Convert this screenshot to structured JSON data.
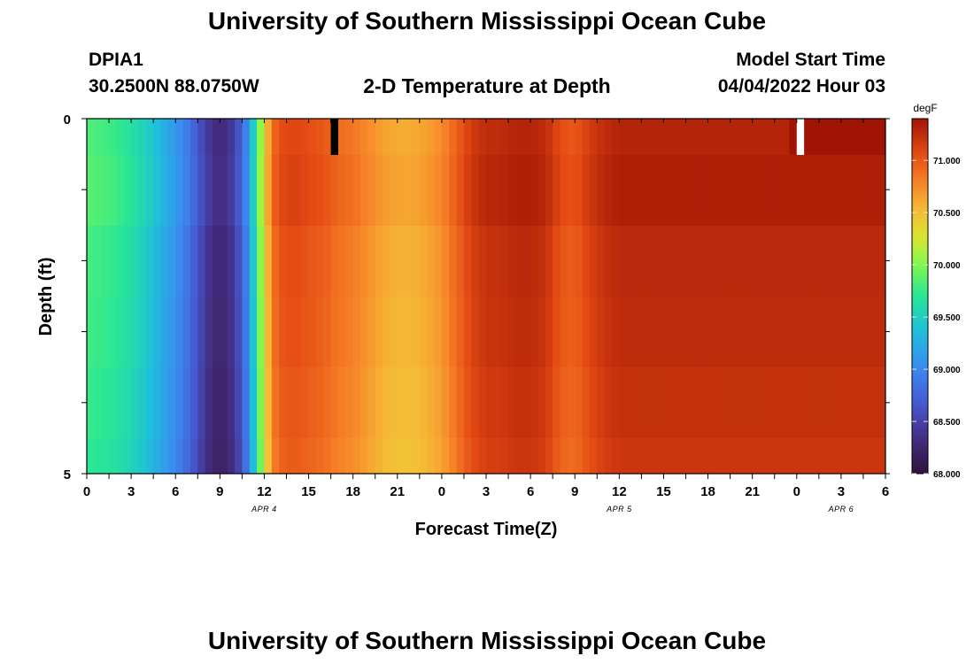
{
  "page": {
    "title": "University of Southern Mississippi Ocean Cube",
    "footer_title": "University of Southern Mississippi Ocean Cube"
  },
  "station": {
    "id": "DPIA1",
    "coords": "30.2500N  88.0750W"
  },
  "model": {
    "label": "Model Start Time",
    "start": "04/04/2022 Hour 03"
  },
  "chart_data": {
    "type": "heatmap",
    "title": "2-D Temperature at Depth",
    "xlabel": "Forecast Time(Z)",
    "ylabel": "Depth (ft)",
    "ylim": [
      0,
      5
    ],
    "y_tick_labels": [
      "0",
      "5"
    ],
    "x_tick_labels": [
      "0",
      "3",
      "6",
      "9",
      "12",
      "15",
      "18",
      "21",
      "0",
      "3",
      "6",
      "9",
      "12",
      "15",
      "18",
      "21",
      "0",
      "3",
      "6"
    ],
    "day_labels": [
      {
        "text": "APR 4",
        "hour": 24
      },
      {
        "text": "APR 5",
        "hour": 72
      },
      {
        "text": "APR 6",
        "hour": 102
      }
    ],
    "hours_total": 108,
    "colorbar": {
      "unit": "degF",
      "min": 68.0,
      "max": 71.4,
      "tick_values": [
        68.0,
        68.5,
        69.0,
        69.5,
        70.0,
        70.5,
        71.0
      ],
      "tick_labels": [
        "68.000",
        "68.500",
        "69.000",
        "69.500",
        "70.000",
        "70.500",
        "71.000"
      ]
    },
    "base_profile_degF": [
      [
        0,
        69.78
      ],
      [
        2,
        69.75
      ],
      [
        4,
        69.7
      ],
      [
        6,
        69.6
      ],
      [
        8,
        69.45
      ],
      [
        10,
        69.25
      ],
      [
        12,
        69.05
      ],
      [
        14,
        68.8
      ],
      [
        15,
        68.6
      ],
      [
        16,
        68.45
      ],
      [
        17,
        68.3
      ],
      [
        18,
        68.25
      ],
      [
        19,
        68.3
      ],
      [
        20,
        68.45
      ],
      [
        21,
        68.7
      ],
      [
        22,
        69.1
      ],
      [
        23,
        69.7
      ],
      [
        24,
        70.3
      ],
      [
        25,
        70.8
      ],
      [
        26,
        71.0
      ],
      [
        28,
        71.05
      ],
      [
        30,
        71.0
      ],
      [
        32,
        70.95
      ],
      [
        34,
        70.85
      ],
      [
        36,
        70.8
      ],
      [
        38,
        70.7
      ],
      [
        40,
        70.6
      ],
      [
        42,
        70.55
      ],
      [
        44,
        70.55
      ],
      [
        46,
        70.6
      ],
      [
        48,
        70.7
      ],
      [
        50,
        70.9
      ],
      [
        52,
        71.1
      ],
      [
        54,
        71.2
      ],
      [
        56,
        71.2
      ],
      [
        58,
        71.25
      ],
      [
        60,
        71.25
      ],
      [
        62,
        71.2
      ],
      [
        64,
        71.0
      ],
      [
        66,
        70.95
      ],
      [
        68,
        71.1
      ],
      [
        70,
        71.2
      ],
      [
        72,
        71.25
      ],
      [
        74,
        71.25
      ]
    ],
    "missing_cells": [
      {
        "hour": 33.0,
        "depth_row": 0,
        "value": "below-min"
      },
      {
        "hour": 96.5,
        "depth_row": 0,
        "value": "above-max"
      }
    ]
  }
}
